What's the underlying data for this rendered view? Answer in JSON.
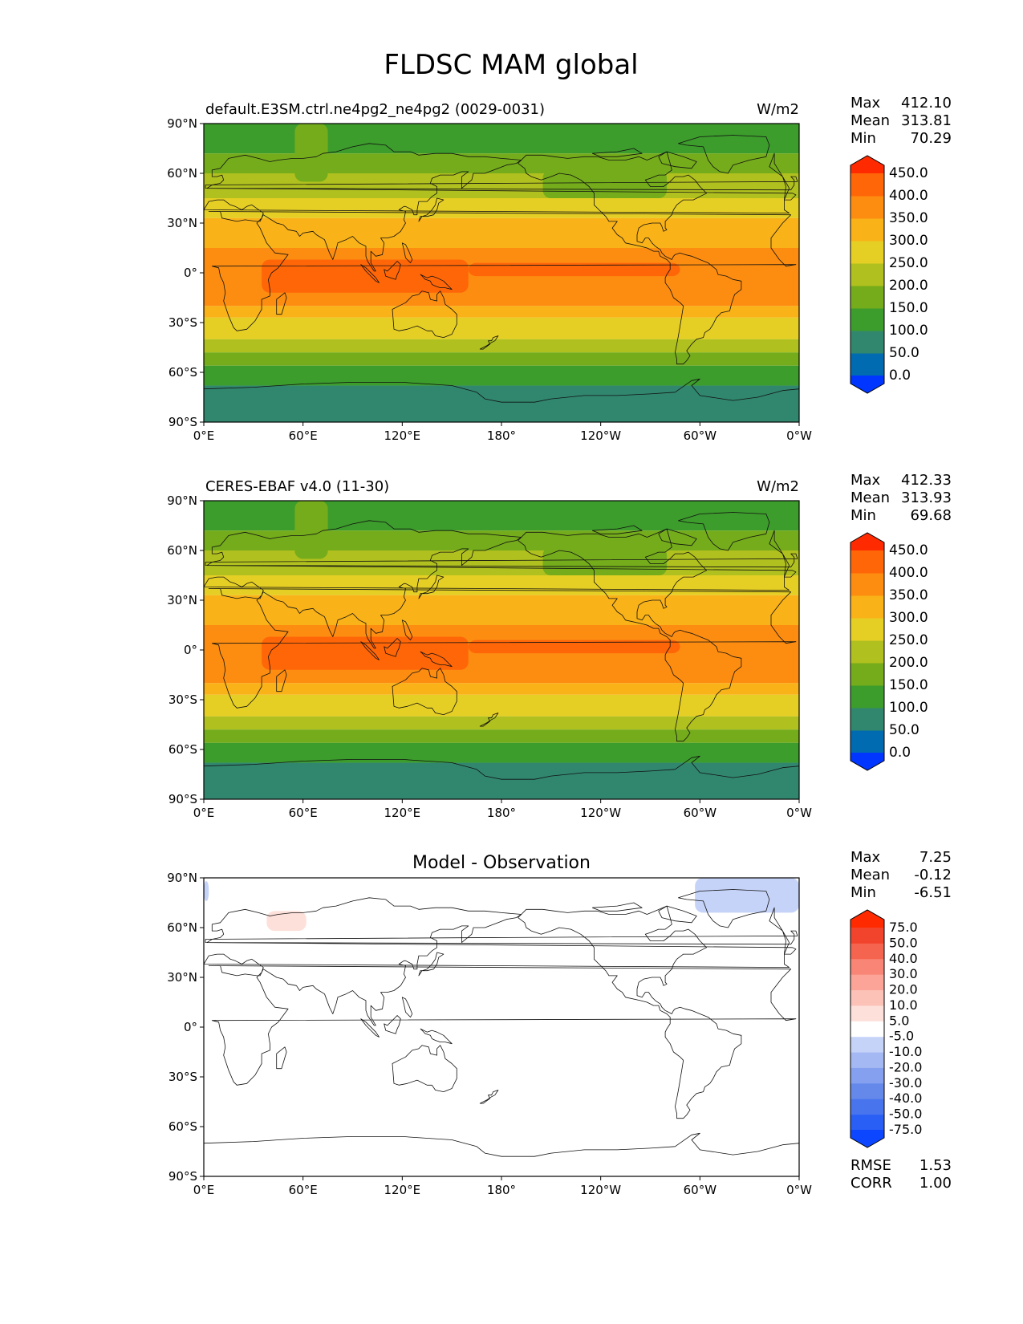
{
  "figure": {
    "title": "FLDSC MAM global"
  },
  "panels": [
    {
      "id": "test",
      "title": "default.E3SM.ctrl.ne4pg2_ne4pg2 (0029-0031)",
      "units": "W/m2",
      "stats": [
        {
          "label": "Max",
          "value": "412.10"
        },
        {
          "label": "Mean",
          "value": "313.81"
        },
        {
          "label": "Min",
          "value": "70.29"
        }
      ],
      "extra_stats": []
    },
    {
      "id": "reference",
      "title": "CERES-EBAF v4.0 (11-30)",
      "units": "W/m2",
      "stats": [
        {
          "label": "Max",
          "value": "412.33"
        },
        {
          "label": "Mean",
          "value": "313.93"
        },
        {
          "label": "Min",
          "value": "69.68"
        }
      ],
      "extra_stats": []
    },
    {
      "id": "difference",
      "title": "Model - Observation",
      "units": "",
      "stats": [
        {
          "label": "Max",
          "value": "7.25"
        },
        {
          "label": "Mean",
          "value": "-0.12"
        },
        {
          "label": "Min",
          "value": "-6.51"
        }
      ],
      "extra_stats": [
        {
          "label": "RMSE",
          "value": "1.53"
        },
        {
          "label": "CORR",
          "value": "1.00"
        }
      ]
    }
  ],
  "chart_data": [
    {
      "type": "heatmap",
      "title": "default.E3SM.ctrl.ne4pg2_ne4pg2 (0029-0031)",
      "units": "W/m2",
      "projection": "PlateCarree",
      "x_ticks": [
        "0°E",
        "60°E",
        "120°E",
        "180°",
        "120°W",
        "60°W",
        "0°W"
      ],
      "y_ticks": [
        "90°N",
        "60°N",
        "30°N",
        "0°",
        "30°S",
        "60°S",
        "90°S"
      ],
      "xlim": [
        0,
        360
      ],
      "ylim": [
        -90,
        90
      ],
      "colorbar": {
        "levels": [
          "0.0",
          "50.0",
          "100.0",
          "150.0",
          "200.0",
          "250.0",
          "300.0",
          "350.0",
          "400.0",
          "450.0"
        ],
        "colors": [
          "#0036ff",
          "#006bb0",
          "#31876e",
          "#3c9c2c",
          "#74ac1b",
          "#b0c01e",
          "#e6cf24",
          "#f9b218",
          "#fd8d11",
          "#ff6608",
          "#ff2a00"
        ],
        "extend": "both"
      },
      "zonal_bands": [
        {
          "lat": [
            72,
            90
          ],
          "value": 125
        },
        {
          "lat": [
            60,
            72
          ],
          "value": 175
        },
        {
          "lat": [
            45,
            60
          ],
          "value": 225
        },
        {
          "lat": [
            33,
            45
          ],
          "value": 275
        },
        {
          "lat": [
            15,
            33
          ],
          "value": 325
        },
        {
          "lat": [
            -20,
            15
          ],
          "value": 375
        },
        {
          "lat": [
            -27,
            -20
          ],
          "value": 325
        },
        {
          "lat": [
            -40,
            -27
          ],
          "value": 275
        },
        {
          "lat": [
            -48,
            -40
          ],
          "value": 225
        },
        {
          "lat": [
            -56,
            -48
          ],
          "value": 175
        },
        {
          "lat": [
            -68,
            -56
          ],
          "value": 125
        },
        {
          "lat": [
            -90,
            -68
          ],
          "value": 75
        }
      ],
      "regions": [
        {
          "lon": [
            35,
            160
          ],
          "lat": [
            -12,
            8
          ],
          "value": 425
        },
        {
          "lon": [
            160,
            288
          ],
          "lat": [
            -2,
            6
          ],
          "value": 425
        },
        {
          "lon": [
            55,
            75
          ],
          "lat": [
            55,
            90
          ],
          "value": 175
        },
        {
          "lon": [
            205,
            280
          ],
          "lat": [
            45,
            62
          ],
          "value": 175
        },
        {
          "lon": [
            -85,
            0
          ],
          "lat": [
            -90,
            -80
          ],
          "value": 75
        }
      ],
      "stats": {
        "max": 412.1,
        "mean": 313.81,
        "min": 70.29
      }
    },
    {
      "type": "heatmap",
      "title": "CERES-EBAF v4.0 (11-30)",
      "units": "W/m2",
      "projection": "PlateCarree",
      "x_ticks": [
        "0°E",
        "60°E",
        "120°E",
        "180°",
        "120°W",
        "60°W",
        "0°W"
      ],
      "y_ticks": [
        "90°N",
        "60°N",
        "30°N",
        "0°",
        "30°S",
        "60°S",
        "90°S"
      ],
      "xlim": [
        0,
        360
      ],
      "ylim": [
        -90,
        90
      ],
      "colorbar": {
        "levels": [
          "0.0",
          "50.0",
          "100.0",
          "150.0",
          "200.0",
          "250.0",
          "300.0",
          "350.0",
          "400.0",
          "450.0"
        ],
        "colors": [
          "#0036ff",
          "#006bb0",
          "#31876e",
          "#3c9c2c",
          "#74ac1b",
          "#b0c01e",
          "#e6cf24",
          "#f9b218",
          "#fd8d11",
          "#ff6608",
          "#ff2a00"
        ],
        "extend": "both"
      },
      "zonal_bands": [
        {
          "lat": [
            72,
            90
          ],
          "value": 125
        },
        {
          "lat": [
            60,
            72
          ],
          "value": 175
        },
        {
          "lat": [
            45,
            60
          ],
          "value": 225
        },
        {
          "lat": [
            33,
            45
          ],
          "value": 275
        },
        {
          "lat": [
            15,
            33
          ],
          "value": 325
        },
        {
          "lat": [
            -20,
            15
          ],
          "value": 375
        },
        {
          "lat": [
            -27,
            -20
          ],
          "value": 325
        },
        {
          "lat": [
            -40,
            -27
          ],
          "value": 275
        },
        {
          "lat": [
            -48,
            -40
          ],
          "value": 225
        },
        {
          "lat": [
            -56,
            -48
          ],
          "value": 175
        },
        {
          "lat": [
            -68,
            -56
          ],
          "value": 125
        },
        {
          "lat": [
            -90,
            -68
          ],
          "value": 75
        }
      ],
      "regions": [
        {
          "lon": [
            35,
            160
          ],
          "lat": [
            -12,
            8
          ],
          "value": 425
        },
        {
          "lon": [
            160,
            288
          ],
          "lat": [
            -2,
            6
          ],
          "value": 425
        },
        {
          "lon": [
            55,
            75
          ],
          "lat": [
            55,
            90
          ],
          "value": 175
        },
        {
          "lon": [
            205,
            280
          ],
          "lat": [
            45,
            62
          ],
          "value": 175
        },
        {
          "lon": [
            -85,
            0
          ],
          "lat": [
            -90,
            -80
          ],
          "value": 75
        }
      ],
      "stats": {
        "max": 412.33,
        "mean": 313.93,
        "min": 69.68
      }
    },
    {
      "type": "heatmap",
      "title": "Model - Observation",
      "projection": "PlateCarree",
      "x_ticks": [
        "0°E",
        "60°E",
        "120°E",
        "180°",
        "120°W",
        "60°W",
        "0°W"
      ],
      "y_ticks": [
        "90°N",
        "60°N",
        "30°N",
        "0°",
        "30°S",
        "60°S",
        "90°S"
      ],
      "xlim": [
        0,
        360
      ],
      "ylim": [
        -90,
        90
      ],
      "colorbar": {
        "levels": [
          "-75.0",
          "-50.0",
          "-40.0",
          "-30.0",
          "-20.0",
          "-10.0",
          "-5.0",
          "5.0",
          "10.0",
          "20.0",
          "30.0",
          "40.0",
          "50.0",
          "75.0"
        ],
        "colors": [
          "#0c47ff",
          "#2a5ff5",
          "#4874ee",
          "#6489ea",
          "#84a0ee",
          "#a4b8f3",
          "#c6d3f8",
          "#ffffff",
          "#fde0da",
          "#fcc2b8",
          "#fba497",
          "#f88575",
          "#f5644f",
          "#f2442c",
          "#ff2a00"
        ],
        "extend": "both"
      },
      "zonal_bands": [
        {
          "lat": [
            -90,
            90
          ],
          "value": 0
        }
      ],
      "regions": [
        {
          "lon": [
            -63,
            0
          ],
          "lat": [
            69,
            90
          ],
          "value": -7
        },
        {
          "lon": [
            0,
            3
          ],
          "lat": [
            76,
            88
          ],
          "value": -7
        },
        {
          "lon": [
            38,
            62
          ],
          "lat": [
            58,
            70
          ],
          "value": 7
        }
      ],
      "stats": {
        "max": 7.25,
        "mean": -0.12,
        "min": -6.51,
        "rmse": 1.53,
        "corr": 1.0
      }
    }
  ]
}
